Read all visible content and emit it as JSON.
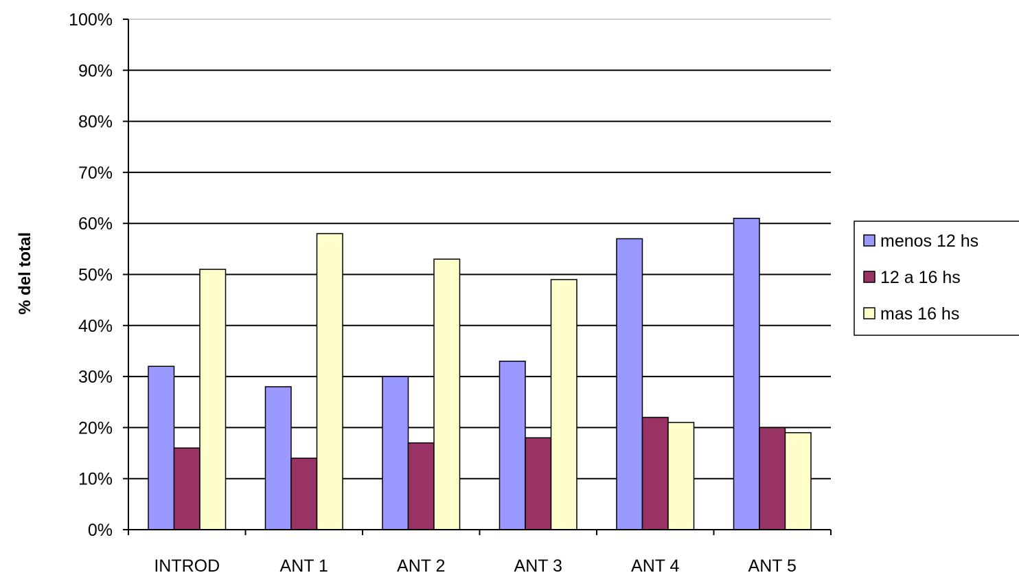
{
  "chart_data": {
    "type": "bar",
    "title": "",
    "xlabel": "",
    "ylabel": "% del total",
    "ylim": [
      0,
      100
    ],
    "ytick_step": 10,
    "ytick_suffix": "%",
    "grid": true,
    "legend_position": "right",
    "categories": [
      "INTROD",
      "ANT 1",
      "ANT 2",
      "ANT 3",
      "ANT 4",
      "ANT 5"
    ],
    "series": [
      {
        "name": "menos 12 hs",
        "color": "#9999ff",
        "values": [
          32,
          28,
          30,
          33,
          57,
          61
        ]
      },
      {
        "name": "12 a 16 hs",
        "color": "#993366",
        "values": [
          16,
          14,
          17,
          18,
          22,
          20
        ]
      },
      {
        "name": "mas 16 hs",
        "color": "#ffffcc",
        "values": [
          51,
          58,
          53,
          49,
          21,
          19
        ]
      }
    ]
  }
}
